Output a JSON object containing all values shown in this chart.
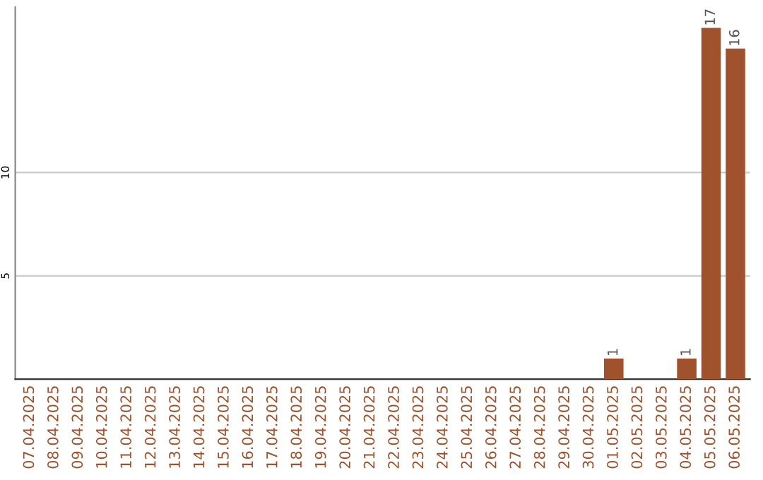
{
  "chart_data": {
    "type": "bar",
    "categories": [
      "07.04.2025",
      "08.04.2025",
      "09.04.2025",
      "10.04.2025",
      "11.04.2025",
      "12.04.2025",
      "13.04.2025",
      "14.04.2025",
      "15.04.2025",
      "16.04.2025",
      "17.04.2025",
      "18.04.2025",
      "19.04.2025",
      "20.04.2025",
      "21.04.2025",
      "22.04.2025",
      "23.04.2025",
      "24.04.2025",
      "25.04.2025",
      "26.04.2025",
      "27.04.2025",
      "28.04.2025",
      "29.04.2025",
      "30.04.2025",
      "01.05.2025",
      "02.05.2025",
      "03.05.2025",
      "04.05.2025",
      "05.05.2025",
      "06.05.2025"
    ],
    "values": [
      0,
      0,
      0,
      0,
      0,
      0,
      0,
      0,
      0,
      0,
      0,
      0,
      0,
      0,
      0,
      0,
      0,
      0,
      0,
      0,
      0,
      0,
      0,
      0,
      1,
      0,
      0,
      1,
      17,
      16
    ],
    "value_labels": [
      null,
      null,
      null,
      null,
      null,
      null,
      null,
      null,
      null,
      null,
      null,
      null,
      null,
      null,
      null,
      null,
      null,
      null,
      null,
      null,
      null,
      null,
      null,
      null,
      "1",
      null,
      null,
      "1",
      "17",
      "16"
    ],
    "color": "#a0522d",
    "ylim": [
      0,
      18
    ],
    "yticks": [
      5,
      10
    ],
    "grid": "y"
  }
}
